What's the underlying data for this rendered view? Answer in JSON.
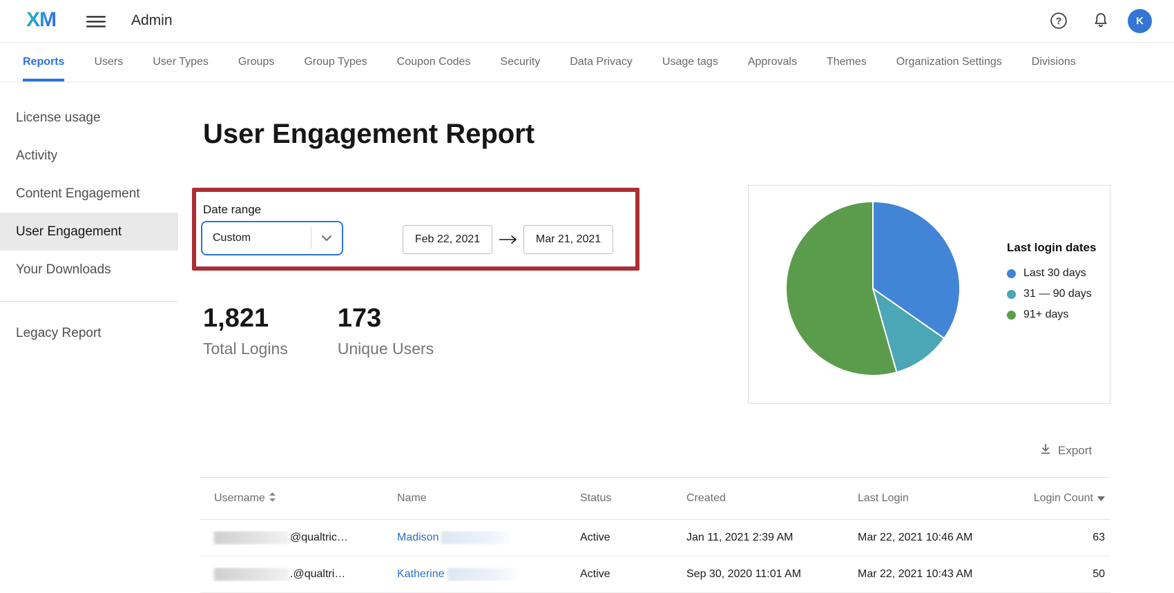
{
  "header": {
    "logo_text": "XM",
    "app_title": "Admin",
    "avatar_initial": "K"
  },
  "tabs": {
    "active": "Reports",
    "items": [
      {
        "label": "Reports"
      },
      {
        "label": "Users"
      },
      {
        "label": "User Types"
      },
      {
        "label": "Groups"
      },
      {
        "label": "Group Types"
      },
      {
        "label": "Coupon Codes"
      },
      {
        "label": "Security"
      },
      {
        "label": "Data Privacy"
      },
      {
        "label": "Usage tags"
      },
      {
        "label": "Approvals"
      },
      {
        "label": "Themes"
      },
      {
        "label": "Organization Settings"
      },
      {
        "label": "Divisions"
      }
    ]
  },
  "sidebar": {
    "active": "User Engagement",
    "items": [
      "License usage",
      "Activity",
      "Content Engagement",
      "User Engagement",
      "Your Downloads"
    ],
    "secondary_items": [
      "Legacy Report"
    ]
  },
  "report": {
    "title": "User Engagement Report",
    "date_range": {
      "label": "Date range",
      "preset_value": "Custom",
      "start_date": "Feb 22, 2021",
      "end_date": "Mar 21, 2021"
    },
    "stats": [
      {
        "value": "1,821",
        "label": "Total Logins"
      },
      {
        "value": "173",
        "label": "Unique Users"
      }
    ]
  },
  "chart_data": {
    "type": "pie",
    "title": "Last login dates",
    "legend_position": "right",
    "start_angle_deg": 0,
    "direction": "clockwise",
    "slices": [
      {
        "label": "Last 30 days",
        "percent": 34.7,
        "color": "#4285d6"
      },
      {
        "label": "31 — 90 days",
        "percent": 10.9,
        "color": "#4ba7b5"
      },
      {
        "label": "91+ days",
        "percent": 54.4,
        "color": "#5b9c4c"
      }
    ]
  },
  "table": {
    "export_label": "Export",
    "columns": [
      {
        "label": "Username",
        "sort": "sortable"
      },
      {
        "label": "Name",
        "sort": "none"
      },
      {
        "label": "Status",
        "sort": "none"
      },
      {
        "label": "Created",
        "sort": "none"
      },
      {
        "label": "Last Login",
        "sort": "none"
      },
      {
        "label": "Login Count",
        "sort": "desc"
      }
    ],
    "rows": [
      {
        "username_redacted": true,
        "username_suffix": "@qualtric…",
        "name_first": "Madison",
        "name_redacted": true,
        "status": "Active",
        "created": "Jan 11, 2021 2:39 AM",
        "last_login": "Mar 22, 2021 10:46 AM",
        "login_count": "63"
      },
      {
        "username_redacted": true,
        "username_suffix": ".@qualtri…",
        "name_first": "Katherine",
        "name_redacted": true,
        "status": "Active",
        "created": "Sep 30, 2020 11:01 AM",
        "last_login": "Mar 22, 2021 10:43 AM",
        "login_count": "50"
      }
    ]
  },
  "colors": {
    "accent_blue": "#2b73de",
    "annotation_red": "#ab2f33",
    "avatar_blue": "#3575d3",
    "link_blue": "#2970d0"
  }
}
